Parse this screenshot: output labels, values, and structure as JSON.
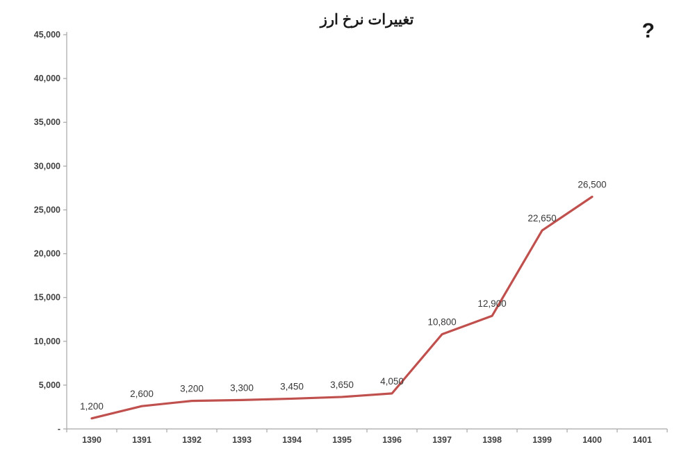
{
  "corner_mark": "?",
  "chart_data": {
    "type": "line",
    "title": "تغییرات نرخ ارز",
    "categories": [
      "1390",
      "1391",
      "1392",
      "1393",
      "1394",
      "1395",
      "1396",
      "1397",
      "1398",
      "1399",
      "1400",
      "1401"
    ],
    "series": [
      {
        "color": "#C0504D",
        "points": [
          {
            "x": "1390",
            "y": 1200,
            "label": "1,200"
          },
          {
            "x": "1391",
            "y": 2600,
            "label": "2,600"
          },
          {
            "x": "1392",
            "y": 3200,
            "label": "3,200"
          },
          {
            "x": "1393",
            "y": 3300,
            "label": "3,300"
          },
          {
            "x": "1394",
            "y": 3450,
            "label": "3,450"
          },
          {
            "x": "1395",
            "y": 3650,
            "label": "3,650"
          },
          {
            "x": "1396",
            "y": 4050,
            "label": "4,050"
          },
          {
            "x": "1397",
            "y": 10800,
            "label": "10,800"
          },
          {
            "x": "1398",
            "y": 12900,
            "label": "12,900"
          },
          {
            "x": "1399",
            "y": 22650,
            "label": "22,650"
          },
          {
            "x": "1400",
            "y": 26500,
            "label": "26,500"
          }
        ]
      }
    ],
    "y_ticks": [
      {
        "label": "45,000",
        "value": 45000
      },
      {
        "label": "40,000",
        "value": 40000
      },
      {
        "label": "35,000",
        "value": 35000
      },
      {
        "label": "30,000",
        "value": 30000
      },
      {
        "label": "25,000",
        "value": 25000
      },
      {
        "label": "20,000",
        "value": 20000
      },
      {
        "label": "15,000",
        "value": 15000
      },
      {
        "label": "10,000",
        "value": 10000
      },
      {
        "label": "5,000",
        "value": 5000
      },
      {
        "label": "-",
        "value": 0
      }
    ],
    "ylim": [
      0,
      45000
    ],
    "grid": false,
    "legend": "none",
    "axis_color": "#A6A6A6",
    "text_color": "#3F3F3F"
  }
}
